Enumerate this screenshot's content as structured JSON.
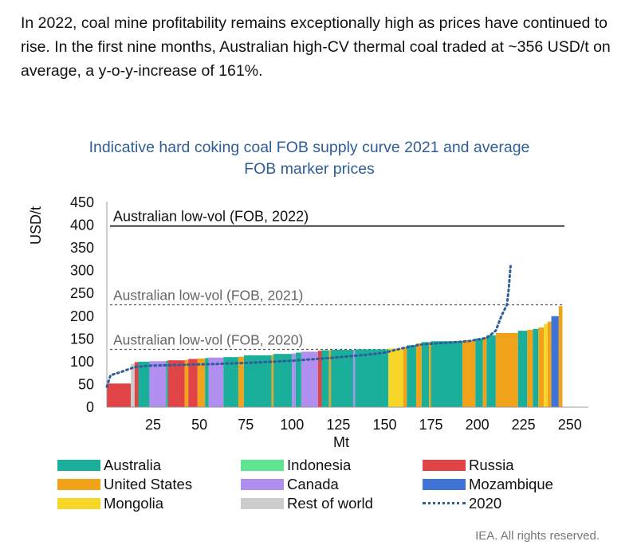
{
  "intro_text": "In 2022, coal mine profitability remains exceptionally high as prices have continued to rise. In the first nine months, Australian high-CV thermal coal traded at ~356 USD/t on average, a y-o-y-increase of 161%.",
  "credit": "IEA. All rights reserved.",
  "colors": {
    "Australia": "#1aaf9b",
    "Indonesia": "#61e491",
    "Russia": "#e04446",
    "United States": "#f0a31a",
    "Canada": "#b08ff0",
    "Mozambique": "#3f74d6",
    "Mongolia": "#f7d628",
    "Rest of world": "#cccccc",
    "curve2020": "#2f5d96"
  },
  "legend": [
    {
      "label": "Australia",
      "key": "Australia"
    },
    {
      "label": "Indonesia",
      "key": "Indonesia"
    },
    {
      "label": "Russia",
      "key": "Russia"
    },
    {
      "label": "United States",
      "key": "United States"
    },
    {
      "label": "Canada",
      "key": "Canada"
    },
    {
      "label": "Mozambique",
      "key": "Mozambique"
    },
    {
      "label": "Mongolia",
      "key": "Mongolia"
    },
    {
      "label": "Rest of world",
      "key": "Rest of world"
    },
    {
      "label": "2020",
      "key": "curve2020",
      "style": "dotted"
    }
  ],
  "chart_data": {
    "type": "bar",
    "title_lines": [
      "Indicative hard coking coal FOB supply curve 2021 and average",
      "FOB marker prices"
    ],
    "xlabel": "Mt",
    "ylabel": "USD/t",
    "xlim": [
      0,
      260
    ],
    "ylim": [
      0,
      450
    ],
    "xticks": [
      25,
      50,
      75,
      100,
      125,
      150,
      175,
      200,
      225,
      250
    ],
    "yticks": [
      0,
      50,
      100,
      150,
      200,
      250,
      300,
      350,
      400,
      450
    ],
    "reference_lines": [
      {
        "label": "Australian low-vol (FOB, 2022)",
        "value": 398,
        "style": "solid"
      },
      {
        "label": "Australian low-vol (FOB, 2021)",
        "value": 225,
        "style": "dashed"
      },
      {
        "label": "Australian low-vol (FOB, 2020)",
        "value": 127,
        "style": "dashed"
      }
    ],
    "segments": [
      {
        "c": "Russia",
        "x0": 0,
        "x1": 13,
        "v": 52
      },
      {
        "c": "Rest of world",
        "x0": 13,
        "x1": 15,
        "v": 95
      },
      {
        "c": "Russia",
        "x0": 15,
        "x1": 17,
        "v": 99
      },
      {
        "c": "Australia",
        "x0": 17,
        "x1": 23,
        "v": 100
      },
      {
        "c": "Canada",
        "x0": 23,
        "x1": 32,
        "v": 101
      },
      {
        "c": "Australia",
        "x0": 32,
        "x1": 33,
        "v": 102
      },
      {
        "c": "Russia",
        "x0": 33,
        "x1": 42,
        "v": 103
      },
      {
        "c": "United States",
        "x0": 42,
        "x1": 44,
        "v": 104
      },
      {
        "c": "Russia",
        "x0": 44,
        "x1": 49,
        "v": 106
      },
      {
        "c": "United States",
        "x0": 49,
        "x1": 53,
        "v": 107
      },
      {
        "c": "Australia",
        "x0": 53,
        "x1": 55,
        "v": 108
      },
      {
        "c": "Canada",
        "x0": 55,
        "x1": 63,
        "v": 109
      },
      {
        "c": "Australia",
        "x0": 63,
        "x1": 71,
        "v": 110
      },
      {
        "c": "United States",
        "x0": 71,
        "x1": 74,
        "v": 111
      },
      {
        "c": "Australia",
        "x0": 74,
        "x1": 89,
        "v": 114
      },
      {
        "c": "United States",
        "x0": 89,
        "x1": 90,
        "v": 115
      },
      {
        "c": "Australia",
        "x0": 90,
        "x1": 100,
        "v": 117
      },
      {
        "c": "Canada",
        "x0": 100,
        "x1": 102,
        "v": 118
      },
      {
        "c": "Australia",
        "x0": 102,
        "x1": 105,
        "v": 120
      },
      {
        "c": "Canada",
        "x0": 105,
        "x1": 114,
        "v": 122
      },
      {
        "c": "Russia",
        "x0": 114,
        "x1": 116,
        "v": 124
      },
      {
        "c": "Australia",
        "x0": 116,
        "x1": 120,
        "v": 125
      },
      {
        "c": "United States",
        "x0": 120,
        "x1": 121,
        "v": 125
      },
      {
        "c": "Australia",
        "x0": 121,
        "x1": 133,
        "v": 126
      },
      {
        "c": "Canada",
        "x0": 133,
        "x1": 134,
        "v": 126
      },
      {
        "c": "Australia",
        "x0": 134,
        "x1": 152,
        "v": 127
      },
      {
        "c": "Mongolia",
        "x0": 152,
        "x1": 160,
        "v": 129
      },
      {
        "c": "United States",
        "x0": 160,
        "x1": 162,
        "v": 132
      },
      {
        "c": "Australia",
        "x0": 162,
        "x1": 167,
        "v": 136
      },
      {
        "c": "United States",
        "x0": 167,
        "x1": 170,
        "v": 140
      },
      {
        "c": "Australia",
        "x0": 170,
        "x1": 174,
        "v": 143
      },
      {
        "c": "United States",
        "x0": 174,
        "x1": 175,
        "v": 144
      },
      {
        "c": "Australia",
        "x0": 175,
        "x1": 192,
        "v": 145
      },
      {
        "c": "United States",
        "x0": 192,
        "x1": 199,
        "v": 147
      },
      {
        "c": "Australia",
        "x0": 199,
        "x1": 203,
        "v": 151
      },
      {
        "c": "United States",
        "x0": 203,
        "x1": 205,
        "v": 154
      },
      {
        "c": "Australia",
        "x0": 205,
        "x1": 210,
        "v": 158
      },
      {
        "c": "United States",
        "x0": 210,
        "x1": 222,
        "v": 163
      },
      {
        "c": "Australia",
        "x0": 222,
        "x1": 227,
        "v": 168
      },
      {
        "c": "United States",
        "x0": 227,
        "x1": 230,
        "v": 170
      },
      {
        "c": "Australia",
        "x0": 230,
        "x1": 233,
        "v": 172
      },
      {
        "c": "United States",
        "x0": 233,
        "x1": 236,
        "v": 175
      },
      {
        "c": "Mongolia",
        "x0": 236,
        "x1": 238,
        "v": 183
      },
      {
        "c": "United States",
        "x0": 238,
        "x1": 240,
        "v": 188
      },
      {
        "c": "Mozambique",
        "x0": 240,
        "x1": 244,
        "v": 200
      },
      {
        "c": "United States",
        "x0": 244,
        "x1": 246,
        "v": 222
      }
    ],
    "curve_2020": [
      [
        0,
        45
      ],
      [
        2,
        70
      ],
      [
        8,
        78
      ],
      [
        15,
        88
      ],
      [
        22,
        91
      ],
      [
        40,
        93
      ],
      [
        60,
        95
      ],
      [
        80,
        98
      ],
      [
        100,
        102
      ],
      [
        120,
        108
      ],
      [
        140,
        115
      ],
      [
        150,
        120
      ],
      [
        160,
        130
      ],
      [
        170,
        138
      ],
      [
        185,
        142
      ],
      [
        195,
        145
      ],
      [
        205,
        152
      ],
      [
        210,
        168
      ],
      [
        213,
        200
      ],
      [
        216,
        225
      ],
      [
        217,
        260
      ],
      [
        218,
        310
      ]
    ]
  }
}
